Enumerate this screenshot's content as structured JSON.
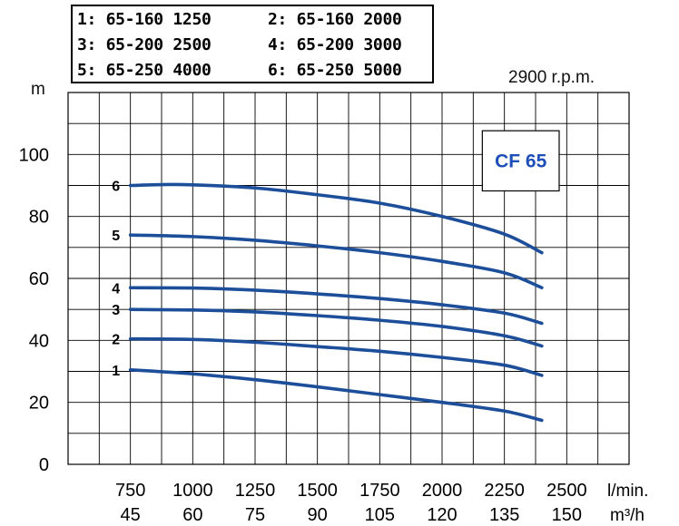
{
  "legend": {
    "items": [
      "1: 65-160 1250",
      "2: 65-160 2000",
      "3: 65-200 2500",
      "4: 65-200 3000",
      "5: 65-250 4000",
      "6: 65-250 5000"
    ]
  },
  "header": {
    "rpm": "2900 r.p.m."
  },
  "colors": {
    "curve": "#1d4e9a",
    "model": "#1e4fb8",
    "grid": "#000000"
  },
  "chart_data": {
    "type": "line",
    "title": "CF 65",
    "ylabel": "m",
    "ylim": [
      0,
      120
    ],
    "y_ticks": [
      "0",
      "20",
      "40",
      "60",
      "80",
      "100"
    ],
    "x_ticks_lmin": [
      "750",
      "1000",
      "1250",
      "1500",
      "1750",
      "2000",
      "2250",
      "2500"
    ],
    "x_ticks_m3h": [
      "45",
      "60",
      "75",
      "90",
      "105",
      "120",
      "135",
      "150"
    ],
    "x_unit_1": "l/min.",
    "x_unit_2": "m³/h",
    "series": [
      {
        "name": "1",
        "x": [
          750,
          1000,
          1250,
          1500,
          1750,
          2000,
          2250,
          2400
        ],
        "y": [
          30.5,
          29.2,
          27.3,
          25.0,
          22.5,
          20.0,
          17.2,
          14.2
        ]
      },
      {
        "name": "2",
        "x": [
          750,
          1000,
          1250,
          1500,
          1750,
          2000,
          2250,
          2400
        ],
        "y": [
          40.5,
          40.3,
          39.4,
          38.0,
          36.5,
          34.5,
          32.0,
          28.7
        ]
      },
      {
        "name": "3",
        "x": [
          750,
          1000,
          1250,
          1500,
          1750,
          2000,
          2250,
          2400
        ],
        "y": [
          50.0,
          49.8,
          49.2,
          48.0,
          46.5,
          44.5,
          41.5,
          38.2
        ]
      },
      {
        "name": "4",
        "x": [
          750,
          1000,
          1250,
          1500,
          1750,
          2000,
          2250,
          2400
        ],
        "y": [
          57.0,
          56.9,
          56.2,
          55.0,
          53.5,
          51.5,
          48.8,
          45.5
        ]
      },
      {
        "name": "5",
        "x": [
          750,
          1000,
          1250,
          1500,
          1750,
          2000,
          2250,
          2400
        ],
        "y": [
          74.0,
          73.5,
          72.3,
          70.5,
          68.3,
          65.5,
          61.8,
          57.0
        ]
      },
      {
        "name": "6",
        "x": [
          750,
          900,
          1000,
          1250,
          1500,
          1750,
          2000,
          2250,
          2400
        ],
        "y": [
          90.0,
          90.3,
          90.2,
          89.2,
          87.0,
          84.3,
          80.0,
          74.3,
          68.3
        ]
      }
    ]
  }
}
